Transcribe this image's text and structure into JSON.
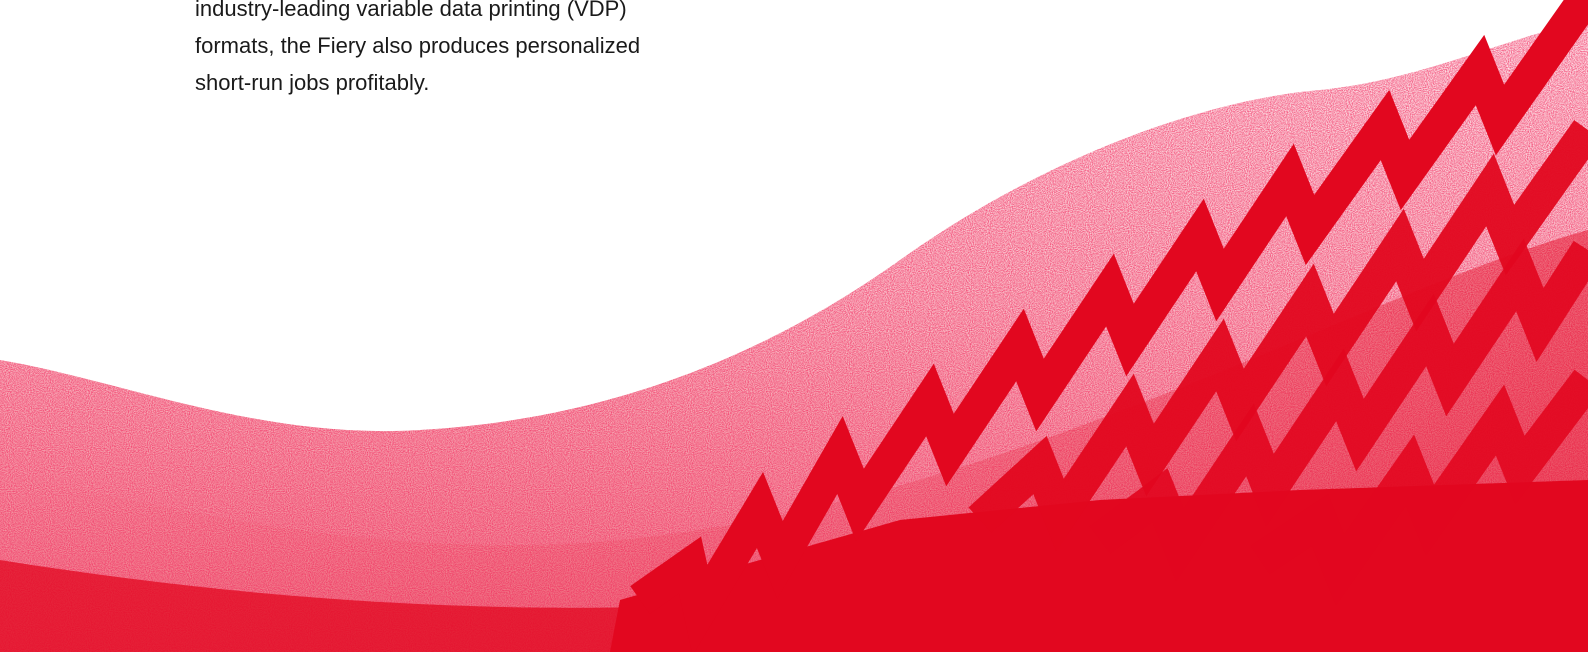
{
  "body_text": {
    "lines": [
      "industry-leading variable data printing (VDP)",
      "formats, the Fiery also produces personalized",
      "short-run jobs profitably."
    ]
  },
  "colors": {
    "brand_red": "#e2071f",
    "text": "#1a1a1a",
    "background": "#ffffff"
  },
  "decoration": {
    "name": "red-grain-wave-with-zigzag-ribbons"
  }
}
